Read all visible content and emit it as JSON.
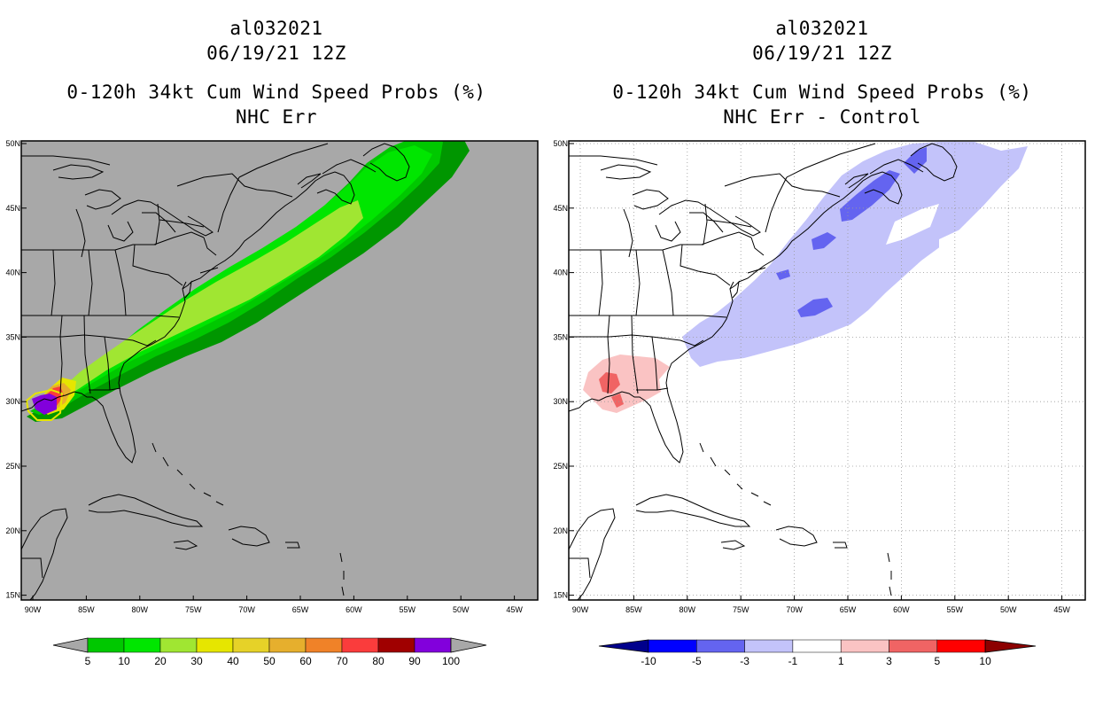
{
  "left_panel": {
    "title_line1": "al032021",
    "title_line2": "06/19/21 12Z",
    "title_line3": "0-120h 34kt Cum Wind Speed Probs (%)",
    "title_line4": "NHC Err",
    "background_color": "#a8a8a8",
    "legend": {
      "labels": [
        "5",
        "10",
        "20",
        "30",
        "40",
        "50",
        "60",
        "70",
        "80",
        "90",
        "100"
      ],
      "colors": [
        "#009600",
        "#00c800",
        "#00e600",
        "#a0e632",
        "#e6e600",
        "#e6d228",
        "#e6af2d",
        "#f08228",
        "#fa3c3c",
        "#a00000",
        "#8200dc"
      ]
    }
  },
  "right_panel": {
    "title_line1": "al032021",
    "title_line2": "06/19/21 12Z",
    "title_line3": "0-120h 34kt Cum Wind Speed Probs (%)",
    "title_line4": "NHC Err - Control",
    "background_color": "#ffffff",
    "legend": {
      "labels": [
        "-10",
        "-5",
        "-3",
        "-1",
        "1",
        "3",
        "5",
        "10"
      ],
      "colors": [
        "#00008c",
        "#0000ff",
        "#6464f0",
        "#c3c3fa",
        "#ffffff",
        "#fac3c3",
        "#f06464",
        "#ff0000",
        "#8c0000"
      ]
    }
  },
  "axes": {
    "lon_labels": [
      "90W",
      "85W",
      "80W",
      "75W",
      "70W",
      "65W",
      "60W",
      "55W",
      "50W",
      "45W"
    ],
    "lat_labels": [
      "50N",
      "45N",
      "40N",
      "35N",
      "30N",
      "25N",
      "20N",
      "15N"
    ]
  }
}
